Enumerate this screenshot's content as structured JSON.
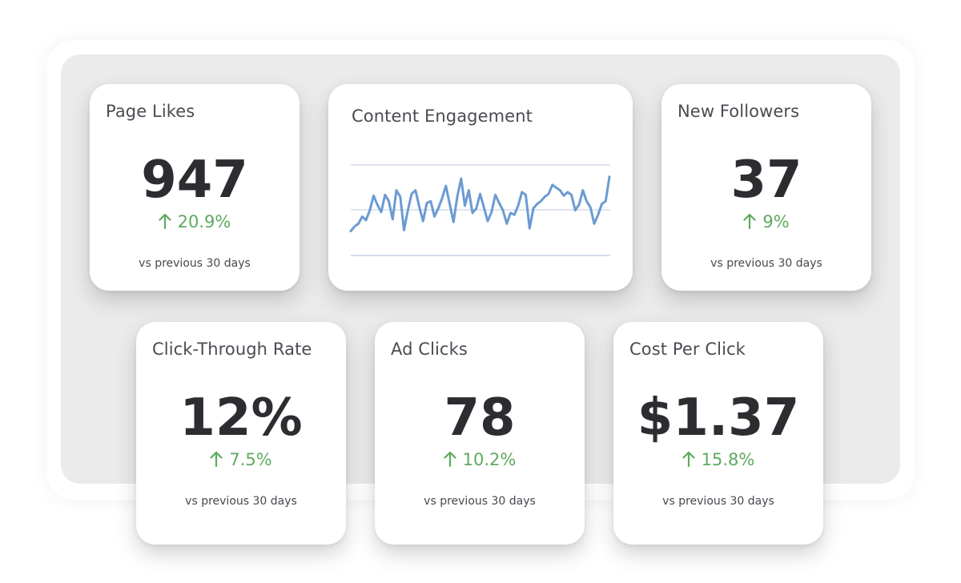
{
  "metrics": {
    "page_likes": {
      "title": "Page Likes",
      "value": "947",
      "change": "20.9%",
      "footer": "vs previous 30 days"
    },
    "new_followers": {
      "title": "New Followers",
      "value": "37",
      "change": "9%",
      "footer": "vs previous 30 days"
    },
    "ctr": {
      "title": "Click-Through Rate",
      "value": "12%",
      "change": "7.5%",
      "footer": "vs previous 30 days"
    },
    "ad_clicks": {
      "title": "Ad Clicks",
      "value": "78",
      "change": "10.2%",
      "footer": "vs previous 30 days"
    },
    "cpc": {
      "title": "Cost Per Click",
      "value": "$1.37",
      "change": "15.8%",
      "footer": "vs previous 30 days"
    }
  },
  "engagement": {
    "title": "Content Engagement"
  },
  "colors": {
    "accent_up": "#5eaa5f",
    "line": "#6b9bd2",
    "grid": "#c9d3e6"
  },
  "chart_data": {
    "type": "line",
    "title": "Content Engagement",
    "xlabel": "",
    "ylabel": "",
    "ylim": [
      0,
      100
    ],
    "grid": true,
    "series": [
      {
        "name": "Content Engagement",
        "values": [
          27,
          32,
          35,
          43,
          39,
          50,
          66,
          56,
          48,
          67,
          60,
          40,
          72,
          65,
          28,
          50,
          68,
          72,
          54,
          38,
          58,
          60,
          43,
          52,
          63,
          77,
          57,
          37,
          65,
          85,
          55,
          72,
          47,
          52,
          68,
          53,
          38,
          48,
          67,
          58,
          50,
          35,
          47,
          45,
          55,
          70,
          67,
          30,
          52,
          57,
          60,
          65,
          68,
          78,
          75,
          72,
          66,
          70,
          67,
          50,
          56,
          72,
          60,
          53,
          35,
          45,
          57,
          60,
          87
        ]
      }
    ]
  }
}
